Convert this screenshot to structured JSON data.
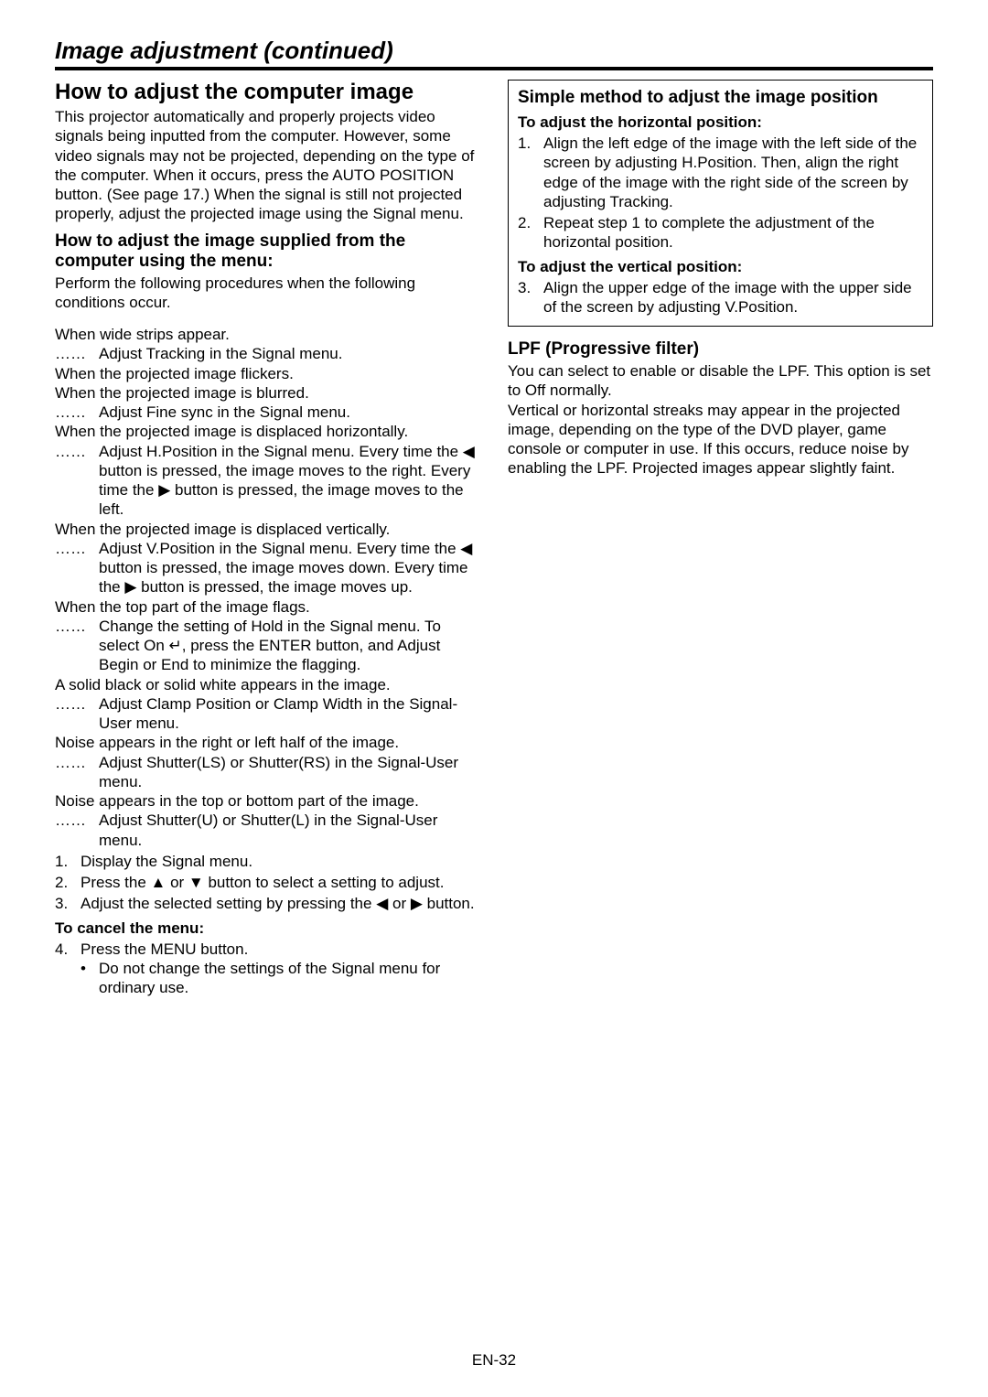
{
  "page": {
    "title": "Image adjustment (continued)",
    "footer": "EN-32"
  },
  "left": {
    "h1": "How to adjust the computer image",
    "intro": "This projector automatically and properly projects video signals being inputted from the computer. However, some video signals may not be projected, depending on the type of the computer. When it occurs, press the AUTO POSITION button. (See page 17.) When the signal is still not projected properly, adjust the projected image using the Signal menu.",
    "h2a": "How to adjust the image supplied from the computer using the menu:",
    "p_perform": "Perform the following procedures when the following conditions occur.",
    "c1": "When wide strips appear.",
    "a1": "Adjust Tracking in the Signal menu.",
    "c2": "When the projected image flickers.",
    "c3": "When the projected image is blurred.",
    "a3": "Adjust Fine sync in the Signal menu.",
    "c4": "When the projected image is displaced horizontally.",
    "a4": "Adjust H.Position in the Signal menu. Every time the ◀ button is pressed, the image moves to the right. Every time the ▶ button is pressed, the image moves to the left.",
    "c5": "When the projected image is displaced vertically.",
    "a5": "Adjust V.Position in the Signal menu. Every time the ◀ button is pressed, the image moves down. Every time the ▶ button is pressed, the image moves up.",
    "c6": "When the top part of the image flags.",
    "a6": "Change the setting of Hold in the Signal menu. To select On ↵, press the ENTER button, and Adjust Begin or End to minimize the flagging.",
    "c7": "A solid black or solid white appears in the image.",
    "a7": "Adjust Clamp Position or Clamp Width in the Signal-User menu.",
    "c8": "Noise appears in the right or left half of the image.",
    "a8": "Adjust Shutter(LS) or Shutter(RS) in the Signal-User menu.",
    "c9": "Noise appears in the top or bottom part of the image.",
    "a9": "Adjust Shutter(U) or Shutter(L) in the Signal-User menu.",
    "s1": "Display the Signal menu.",
    "s2": "Press the ▲ or ▼ button to select a setting to adjust.",
    "s3": "Adjust the selected setting by pressing the ◀ or ▶ button.",
    "h3_cancel": "To cancel the menu:",
    "s4": "Press the MENU button.",
    "b1": "Do not change the settings of the Signal menu for ordinary use."
  },
  "right": {
    "box_h2": "Simple method to adjust the image position",
    "box_h3a": "To adjust the horizontal position:",
    "box_s1": "Align the left edge of the image with the left side of the screen by adjusting H.Position. Then, align the right edge of the image with the right side of the screen by adjusting Tracking.",
    "box_s2": "Repeat step 1 to complete the adjustment of the horizontal position.",
    "box_h3b": "To adjust the vertical position:",
    "box_s3": "Align the upper edge of the image with the upper side of the screen by adjusting V.Position.",
    "lpf_h2": "LPF (Progressive filter)",
    "lpf_p1": "You can select to enable or disable the LPF. This option is set to Off normally.",
    "lpf_p2": "Vertical or horizontal streaks may appear in the projected image, depending on the type of the DVD player, game console or computer in use. If this occurs, reduce noise by enabling the LPF. Projected images appear slightly faint."
  },
  "sym": {
    "dots": "……"
  }
}
